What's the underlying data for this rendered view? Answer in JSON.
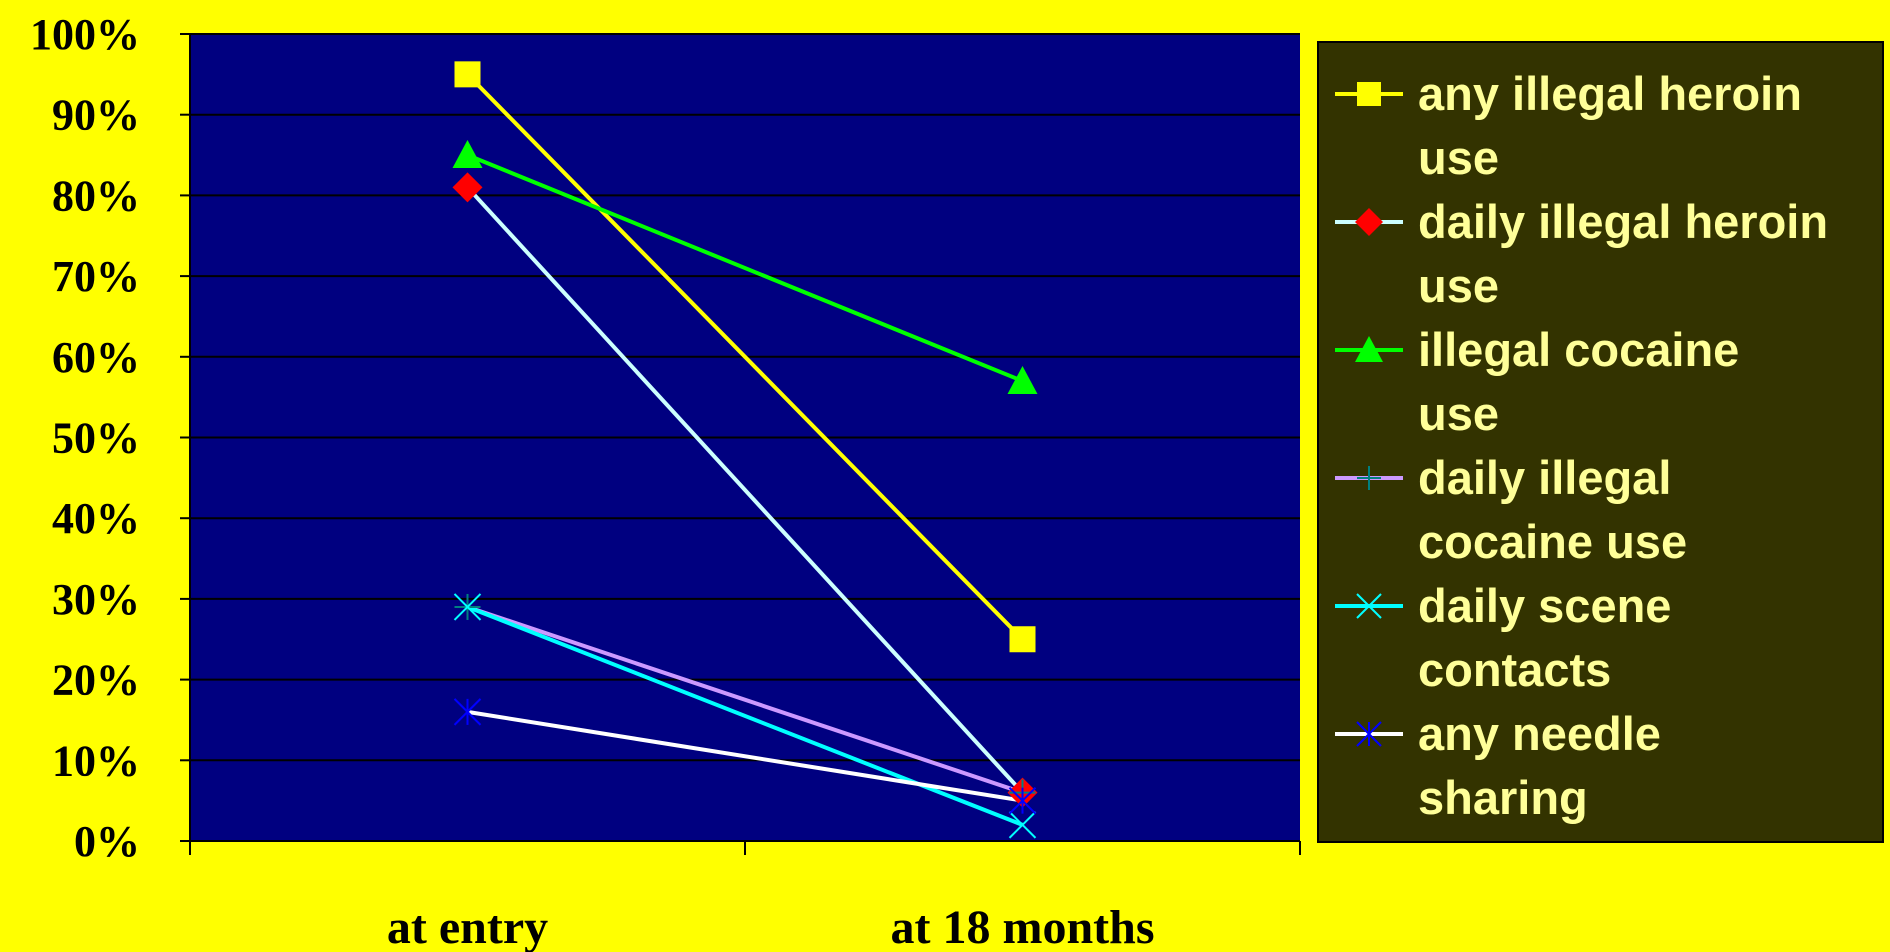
{
  "chart_data": {
    "type": "line",
    "categories": [
      "at entry",
      "at 18 months"
    ],
    "y_tick_labels": [
      "0%",
      "10%",
      "20%",
      "30%",
      "40%",
      "50%",
      "60%",
      "70%",
      "80%",
      "90%",
      "100%"
    ],
    "ylim": [
      0,
      100
    ],
    "grid": true,
    "legend_placement": "right",
    "colors": {
      "page_background": "#ffff00",
      "plot_background": "#000080",
      "legend_background": "#333300",
      "legend_text": "#ffff99",
      "gridline": "#000000"
    },
    "series": [
      {
        "name": "any illegal heroin use",
        "legend_lines": [
          "any illegal heroin",
          "use"
        ],
        "values": [
          95,
          25
        ],
        "line_color": "#ffff00",
        "marker": "square",
        "marker_color": "#ffff00"
      },
      {
        "name": "daily illegal heroin use",
        "legend_lines": [
          "daily illegal heroin",
          "use"
        ],
        "values": [
          81,
          6
        ],
        "line_color": "#ccffff",
        "marker": "diamond",
        "marker_color": "#ff0000"
      },
      {
        "name": "illegal cocaine use",
        "legend_lines": [
          "illegal cocaine",
          "use"
        ],
        "values": [
          85,
          57
        ],
        "line_color": "#00ff00",
        "marker": "triangle",
        "marker_color": "#00ff00"
      },
      {
        "name": "daily illegal cocaine use",
        "legend_lines": [
          "daily illegal",
          "cocaine use"
        ],
        "values": [
          29,
          6
        ],
        "line_color": "#cc99ff",
        "marker": "plus",
        "marker_color": "#008080"
      },
      {
        "name": "daily scene contacts",
        "legend_lines": [
          "daily scene",
          "contacts"
        ],
        "values": [
          29,
          2
        ],
        "line_color": "#00ffff",
        "marker": "x",
        "marker_color": "#00ffff"
      },
      {
        "name": "any needle sharing",
        "legend_lines": [
          "any needle",
          "sharing"
        ],
        "values": [
          16,
          5
        ],
        "line_color": "#ffffff",
        "marker": "star",
        "marker_color": "#0000ff"
      }
    ]
  }
}
